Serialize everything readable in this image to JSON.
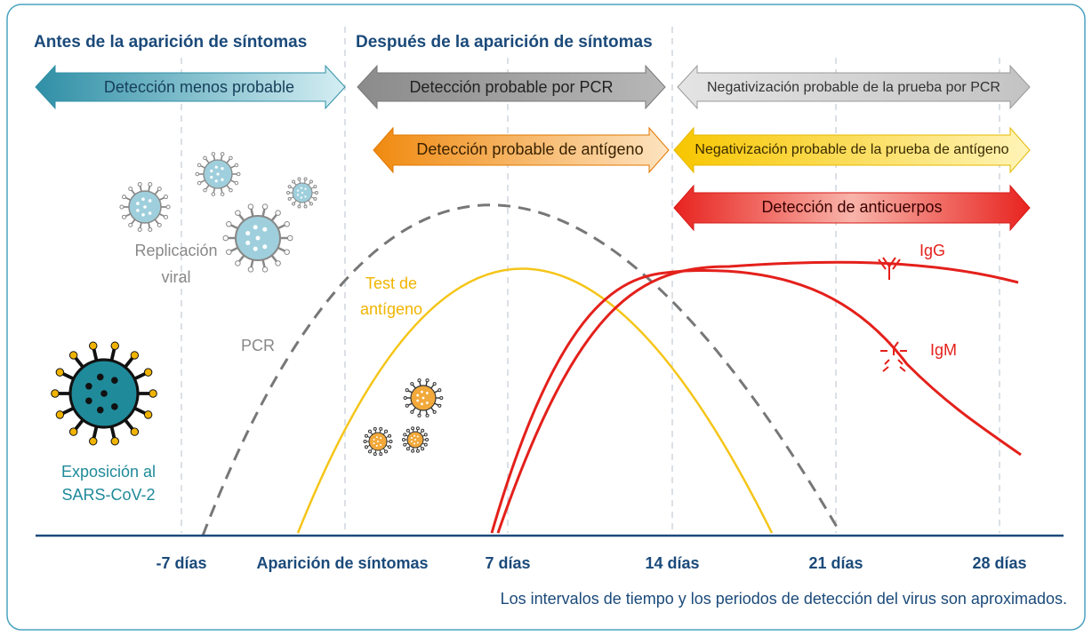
{
  "headers": {
    "before": "Antes de la aparición de síntomas",
    "after": "Después de la aparición de síntomas"
  },
  "arrows": {
    "less_probable": "Detección menos probable",
    "pcr_probable": "Detección probable por PCR",
    "pcr_negative": "Negativización probable de la prueba por PCR",
    "antigen_probable": "Detección probable de antígeno",
    "antigen_negative": "Negativización probable de la prueba de antígeno",
    "antibodies": "Detección de anticuerpos"
  },
  "labels": {
    "replication": [
      "Replicación",
      "viral"
    ],
    "pcr": "PCR",
    "antigen_test": [
      "Test de",
      "antígeno"
    ],
    "igg": "IgG",
    "igm": "IgM",
    "exposure": [
      "Exposición al",
      "SARS-CoV-2"
    ]
  },
  "axis": {
    "ticks": [
      "-7 días",
      "Aparición de síntomas",
      "7 días",
      "14 días",
      "21 días",
      "28 días"
    ]
  },
  "note": "Los intervalos de tiempo y los periodos de detección del virus son aproximados."
}
